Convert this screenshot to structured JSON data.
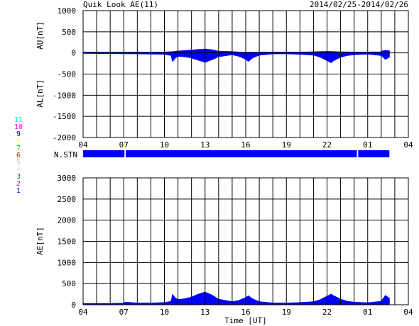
{
  "header": {
    "title": "Quik Look AE(11)",
    "date_range": "2014/02/25-2014/02/26"
  },
  "colors": {
    "fill": "#0000ff",
    "grid": "#000000",
    "background": "#ffffff"
  },
  "station_legend": [
    {
      "label": "11",
      "color": "#00e0e0"
    },
    {
      "label": "10",
      "color": "#ff00ff"
    },
    {
      "label": "9",
      "color": "#0000c0"
    },
    {
      "label": "8",
      "color": "#ffff80"
    },
    {
      "label": "7",
      "color": "#00c000"
    },
    {
      "label": "6",
      "color": "#ff0000"
    },
    {
      "label": "5",
      "color": "#c0c0c0"
    },
    {
      "label": "4",
      "color": "#e0e0e0"
    },
    {
      "label": "3",
      "color": "#008080"
    },
    {
      "label": "2",
      "color": "#c000c0"
    },
    {
      "label": "1",
      "color": "#0000ff"
    }
  ],
  "x_axis": {
    "tick_labels": [
      "04",
      "07",
      "10",
      "13",
      "16",
      "19",
      "22",
      "01",
      "04"
    ],
    "label": "Time [UT]"
  },
  "chart_data": [
    {
      "type": "area",
      "panel": "AU/AL",
      "ylabel_upper": "AU[nT]",
      "ylabel_lower": "AL[nT]",
      "ylim": [
        -2000,
        1000
      ],
      "yticks": [
        1000,
        500,
        0,
        -500,
        -1000,
        -1500,
        -2000
      ],
      "x_range_hours": [
        4,
        28
      ],
      "grid": true,
      "series": [
        {
          "name": "AU",
          "x": [
            4,
            6,
            8,
            9,
            10,
            10.6,
            11,
            11.5,
            12,
            12.5,
            13,
            13.5,
            14,
            15,
            15.5,
            16,
            16.5,
            17,
            18,
            19,
            20,
            21,
            21.5,
            22,
            22.5,
            23,
            24,
            25,
            26,
            26,
            26.3,
            26.6
          ],
          "y": [
            20,
            15,
            18,
            15,
            20,
            30,
            45,
            55,
            65,
            80,
            90,
            75,
            40,
            30,
            20,
            15,
            15,
            18,
            20,
            18,
            20,
            25,
            30,
            35,
            30,
            25,
            20,
            20,
            25,
            40,
            60,
            50
          ]
        },
        {
          "name": "AL",
          "x": [
            4,
            6,
            8,
            9,
            10,
            10.5,
            10.6,
            10.8,
            11,
            11.5,
            12,
            12.5,
            13,
            13.5,
            14,
            15,
            15.5,
            16,
            16.2,
            16.5,
            17,
            18,
            19,
            20,
            21,
            21.5,
            22,
            22.3,
            22.5,
            23,
            23.5,
            24,
            25,
            26,
            26.3,
            26.6
          ],
          "y": [
            -10,
            -15,
            -20,
            -25,
            -30,
            -60,
            -200,
            -120,
            -80,
            -90,
            -120,
            -170,
            -220,
            -160,
            -90,
            -40,
            -80,
            -150,
            -200,
            -120,
            -50,
            -20,
            -20,
            -30,
            -50,
            -100,
            -180,
            -230,
            -180,
            -100,
            -60,
            -40,
            -25,
            -60,
            -150,
            -100
          ]
        }
      ]
    },
    {
      "type": "bar",
      "panel": "N.STN",
      "label": "N.STN",
      "segments": [
        [
          4,
          7.05
        ],
        [
          7.15,
          24.2
        ],
        [
          24.3,
          26.6
        ]
      ]
    },
    {
      "type": "area",
      "panel": "AE",
      "ylabel": "AE[nT]",
      "ylim": [
        0,
        3000
      ],
      "yticks": [
        3000,
        2500,
        2000,
        1500,
        1000,
        500,
        0
      ],
      "x_range_hours": [
        4,
        28
      ],
      "grid": true,
      "series": [
        {
          "name": "AE",
          "x": [
            4,
            6,
            7,
            7.1,
            8,
            9,
            10,
            10.5,
            10.6,
            10.8,
            11,
            11.5,
            12,
            12.5,
            13,
            13.5,
            14,
            15,
            15.5,
            16,
            16.2,
            16.5,
            17,
            18,
            19,
            20,
            21,
            21.5,
            22,
            22.3,
            22.5,
            23,
            23.5,
            24,
            25,
            26,
            26.3,
            26.6
          ],
          "y": [
            30,
            30,
            35,
            60,
            40,
            40,
            50,
            80,
            240,
            160,
            120,
            140,
            180,
            250,
            300,
            230,
            130,
            70,
            100,
            170,
            210,
            140,
            70,
            40,
            40,
            50,
            70,
            120,
            200,
            250,
            210,
            130,
            80,
            60,
            45,
            80,
            220,
            150
          ]
        }
      ]
    }
  ]
}
